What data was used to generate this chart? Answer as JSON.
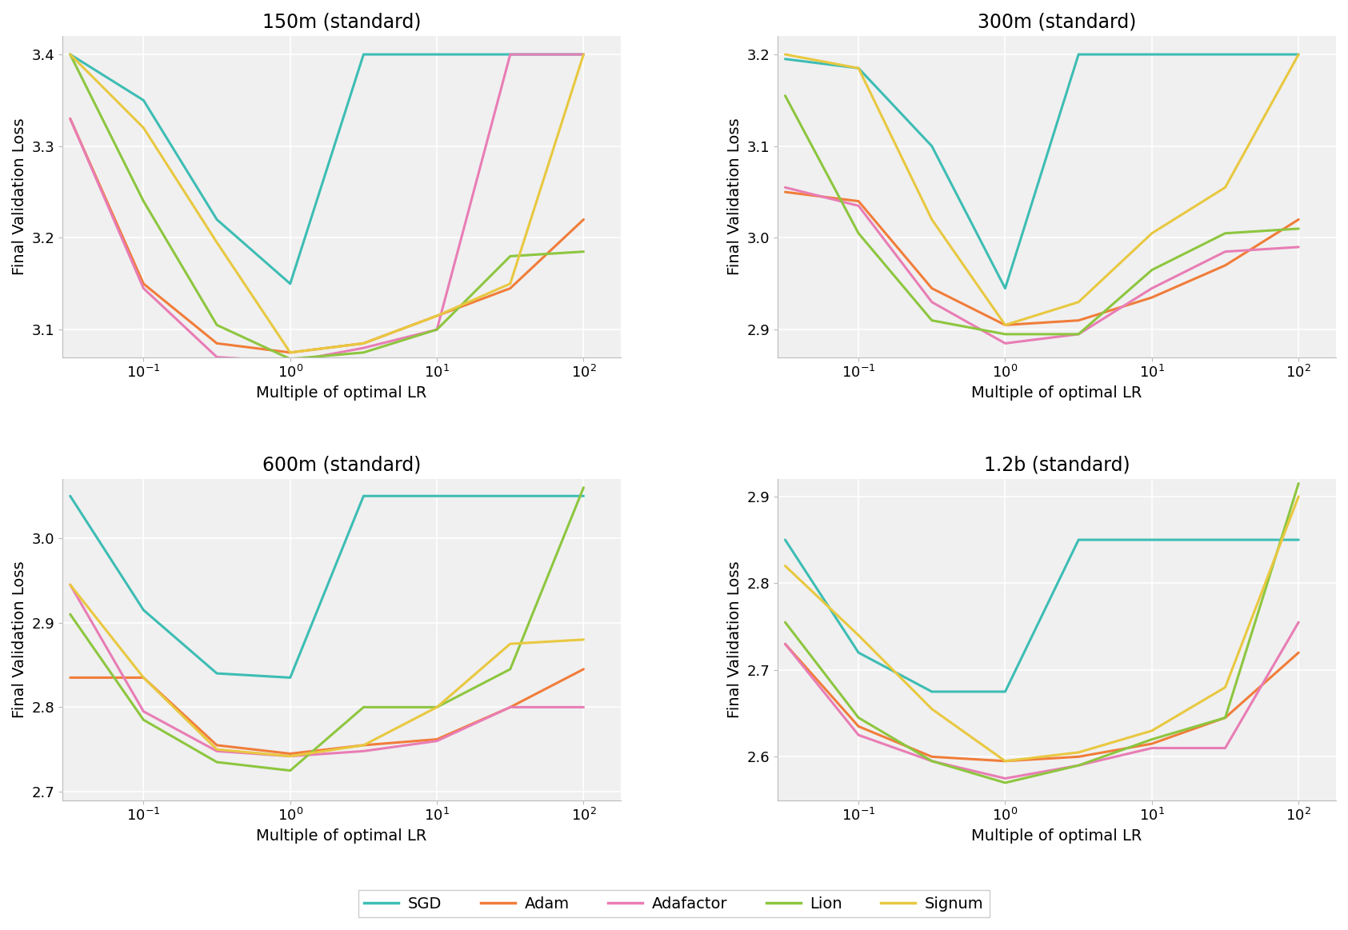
{
  "titles": [
    "150m (standard)",
    "300m (standard)",
    "600m (standard)",
    "1.2b (standard)"
  ],
  "xlabel": "Multiple of optimal LR",
  "ylabel": "Final Validation Loss",
  "x_values": [
    0.031623,
    0.1,
    0.31623,
    1.0,
    3.1623,
    10.0,
    31.623,
    100.0
  ],
  "colors": {
    "SGD": "#3dbdb4",
    "Adam": "#f07d3a",
    "Adafactor": "#e87db5",
    "Lion": "#8dc63f",
    "Signum": "#e8c840"
  },
  "linewidth": 2.2,
  "data": {
    "150m": {
      "SGD": [
        3.4,
        3.35,
        3.22,
        3.15,
        3.4,
        3.4,
        3.4,
        3.4
      ],
      "Adam": [
        3.33,
        3.15,
        3.085,
        3.075,
        3.085,
        3.115,
        3.145,
        3.22
      ],
      "Adafactor": [
        3.33,
        3.145,
        3.07,
        3.065,
        3.08,
        3.1,
        3.4,
        3.4
      ],
      "Lion": [
        3.4,
        3.24,
        3.105,
        3.068,
        3.075,
        3.1,
        3.18,
        3.185
      ],
      "Signum": [
        3.4,
        3.32,
        3.195,
        3.075,
        3.085,
        3.115,
        3.15,
        3.4
      ]
    },
    "300m": {
      "SGD": [
        3.195,
        3.185,
        3.1,
        2.945,
        3.2,
        3.2,
        3.2,
        3.2
      ],
      "Adam": [
        3.05,
        3.04,
        2.945,
        2.905,
        2.91,
        2.935,
        2.97,
        3.02
      ],
      "Adafactor": [
        3.055,
        3.035,
        2.93,
        2.885,
        2.895,
        2.945,
        2.985,
        2.99
      ],
      "Lion": [
        3.155,
        3.005,
        2.91,
        2.895,
        2.895,
        2.965,
        3.005,
        3.01
      ],
      "Signum": [
        3.2,
        3.185,
        3.02,
        2.905,
        2.93,
        3.005,
        3.055,
        3.2
      ]
    },
    "600m": {
      "SGD": [
        3.05,
        2.915,
        2.84,
        2.835,
        3.05,
        3.05,
        3.05,
        3.05
      ],
      "Adam": [
        2.835,
        2.835,
        2.755,
        2.745,
        2.755,
        2.762,
        2.8,
        2.845
      ],
      "Adafactor": [
        2.945,
        2.795,
        2.748,
        2.742,
        2.748,
        2.76,
        2.8,
        2.8
      ],
      "Lion": [
        2.91,
        2.785,
        2.735,
        2.725,
        2.8,
        2.8,
        2.845,
        3.06
      ],
      "Signum": [
        2.945,
        2.835,
        2.75,
        2.742,
        2.755,
        2.8,
        2.875,
        2.88
      ]
    },
    "1.2b": {
      "SGD": [
        2.85,
        2.72,
        2.675,
        2.675,
        2.85,
        2.85,
        2.85,
        2.85
      ],
      "Adam": [
        2.73,
        2.635,
        2.6,
        2.595,
        2.6,
        2.615,
        2.645,
        2.72
      ],
      "Adafactor": [
        2.73,
        2.625,
        2.595,
        2.575,
        2.59,
        2.61,
        2.61,
        2.755
      ],
      "Lion": [
        2.755,
        2.645,
        2.595,
        2.57,
        2.59,
        2.62,
        2.645,
        2.915
      ],
      "Signum": [
        2.82,
        2.74,
        2.655,
        2.595,
        2.605,
        2.63,
        2.68,
        2.9
      ]
    }
  },
  "ylims": {
    "150m": [
      3.07,
      3.42
    ],
    "300m": [
      2.87,
      3.22
    ],
    "600m": [
      2.69,
      3.07
    ],
    "1.2b": [
      2.55,
      2.92
    ]
  },
  "yticks": {
    "150m": [
      3.1,
      3.2,
      3.3,
      3.4
    ],
    "300m": [
      2.9,
      3.0,
      3.1,
      3.2
    ],
    "600m": [
      2.7,
      2.8,
      2.9,
      3.0
    ],
    "1.2b": [
      2.6,
      2.7,
      2.8,
      2.9
    ]
  },
  "legend_labels": [
    "SGD",
    "Adam",
    "Adafactor",
    "Lion",
    "Signum"
  ],
  "background_color": "#f0f0f0",
  "grid_color": "white",
  "title_fontsize": 17,
  "label_fontsize": 14,
  "tick_fontsize": 13
}
